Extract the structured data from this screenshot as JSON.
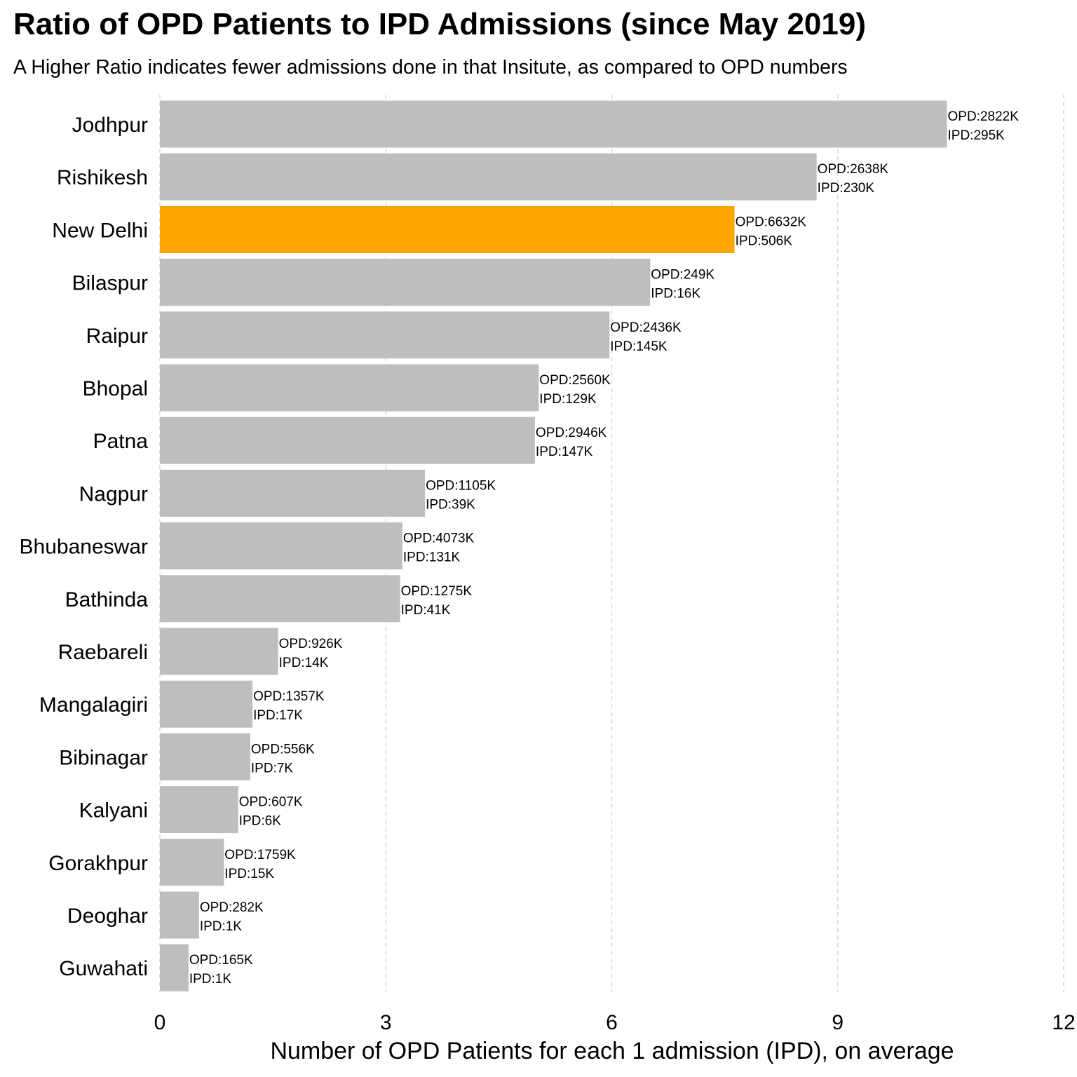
{
  "chart_data": {
    "type": "bar",
    "orientation": "horizontal",
    "title": "Ratio of OPD Patients to IPD Admissions (since May 2019)",
    "subtitle": "A Higher Ratio indicates fewer admissions done in that Insitute, as compared to OPD numbers",
    "xlabel": "Number of OPD Patients for each 1 admission (IPD), on average",
    "ylabel": "",
    "xlim": [
      0,
      12
    ],
    "xticks": [
      0,
      3,
      6,
      9,
      12
    ],
    "grid": "vertical dashed",
    "legend": "none",
    "colors": {
      "default": "#bebebe",
      "highlight": "#ffa500",
      "grid": "#d9d9d9",
      "text": "#000000"
    },
    "highlight": "New Delhi",
    "categories": [
      "Jodhpur",
      "Rishikesh",
      "New Delhi",
      "Bilaspur",
      "Raipur",
      "Bhopal",
      "Patna",
      "Nagpur",
      "Bhubaneswar",
      "Bathinda",
      "Raebareli",
      "Mangalagiri",
      "Bibinagar",
      "Kalyani",
      "Gorakhpur",
      "Deoghar",
      "Guwahati"
    ],
    "values": [
      10.45,
      8.72,
      7.63,
      6.51,
      5.97,
      5.03,
      4.98,
      3.52,
      3.22,
      3.19,
      1.57,
      1.23,
      1.2,
      1.04,
      0.85,
      0.52,
      0.38
    ],
    "labels_opd": [
      "OPD:2822K",
      "OPD:2638K",
      "OPD:6632K",
      "OPD:249K",
      "OPD:2436K",
      "OPD:2560K",
      "OPD:2946K",
      "OPD:1105K",
      "OPD:4073K",
      "OPD:1275K",
      "OPD:926K",
      "OPD:1357K",
      "OPD:556K",
      "OPD:607K",
      "OPD:1759K",
      "OPD:282K",
      "OPD:165K"
    ],
    "labels_ipd": [
      "IPD:295K",
      "IPD:230K",
      "IPD:506K",
      "IPD:16K",
      "IPD:145K",
      "IPD:129K",
      "IPD:147K",
      "IPD:39K",
      "IPD:131K",
      "IPD:41K",
      "IPD:14K",
      "IPD:17K",
      "IPD:7K",
      "IPD:6K",
      "IPD:15K",
      "IPD:1K",
      "IPD:1K"
    ]
  }
}
